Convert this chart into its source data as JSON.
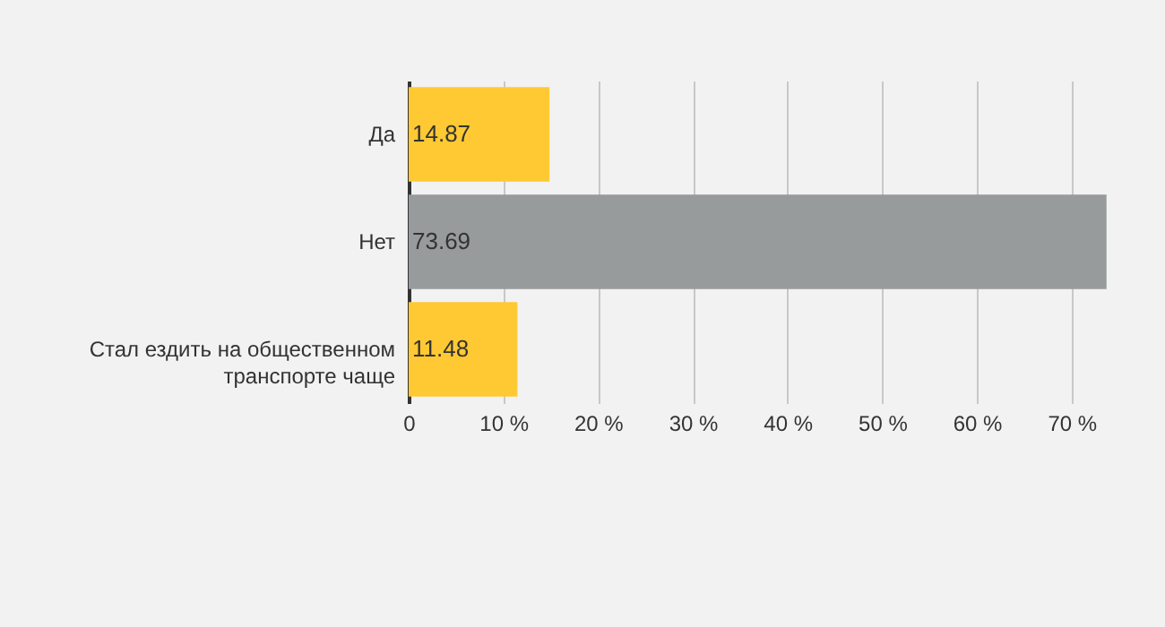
{
  "chart_data": {
    "type": "bar",
    "orientation": "horizontal",
    "categories": [
      "Да",
      "Нет",
      "Стал ездить на общественном транспорте чаще"
    ],
    "values": [
      14.87,
      73.69,
      11.48
    ],
    "colors": [
      "#ffc933",
      "#979b9c",
      "#ffc933"
    ],
    "xlim": [
      0,
      74
    ],
    "xticks": [
      0,
      {
        "value": 10,
        "label": "10 %"
      },
      {
        "value": 20,
        "label": "20 %"
      },
      {
        "value": 30,
        "label": "30 %"
      },
      {
        "value": 40,
        "label": "40 %"
      },
      {
        "value": 50,
        "label": "50 %"
      },
      {
        "value": 60,
        "label": "60 %"
      },
      {
        "value": 70,
        "label": "70 %"
      }
    ],
    "grid": "x",
    "data_labels": true
  }
}
